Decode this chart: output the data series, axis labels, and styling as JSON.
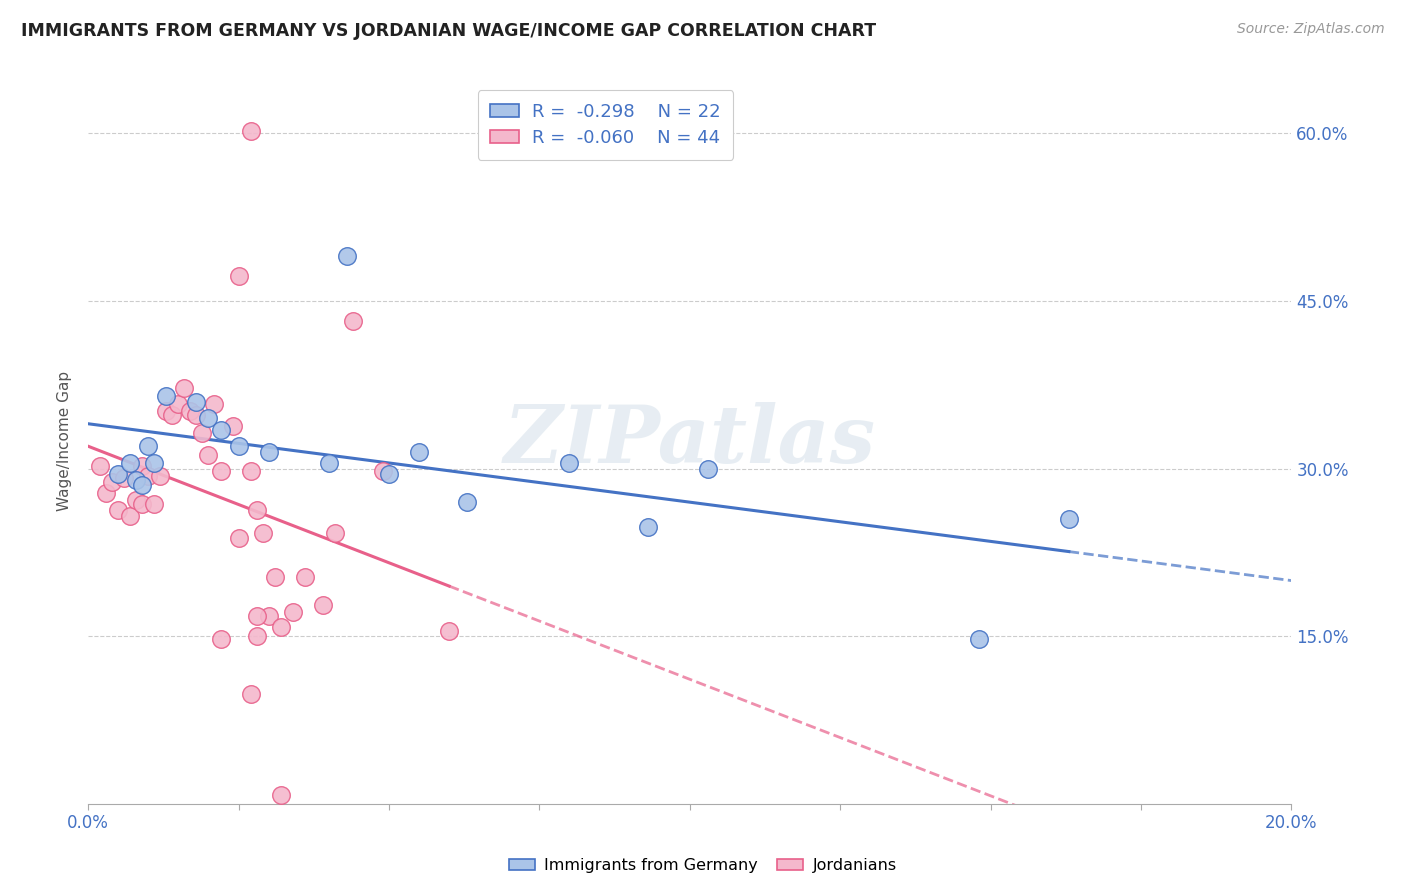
{
  "title": "IMMIGRANTS FROM GERMANY VS JORDANIAN WAGE/INCOME GAP CORRELATION CHART",
  "source": "Source: ZipAtlas.com",
  "ylabel": "Wage/Income Gap",
  "xmin": 0.0,
  "xmax": 0.2,
  "ymin": 0.0,
  "ymax": 0.65,
  "yticks": [
    0.15,
    0.3,
    0.45,
    0.6
  ],
  "ytick_labels": [
    "15.0%",
    "30.0%",
    "45.0%",
    "60.0%"
  ],
  "xtick_positions": [
    0.0,
    0.025,
    0.05,
    0.075,
    0.1,
    0.125,
    0.15,
    0.175,
    0.2
  ],
  "grid_color": "#cccccc",
  "background_color": "#ffffff",
  "watermark": "ZIPatlas",
  "legend_R_blue": "-0.298",
  "legend_N_blue": "22",
  "legend_R_pink": "-0.060",
  "legend_N_pink": "44",
  "blue_line_color": "#4472c4",
  "pink_line_color": "#e8608a",
  "blue_dot_face": "#aac4e8",
  "blue_dot_edge": "#4472c4",
  "pink_dot_face": "#f4b8cc",
  "pink_dot_edge": "#e8608a",
  "blue_points_x": [
    0.005,
    0.007,
    0.008,
    0.009,
    0.01,
    0.011,
    0.013,
    0.018,
    0.02,
    0.022,
    0.025,
    0.03,
    0.04,
    0.043,
    0.05,
    0.055,
    0.063,
    0.08,
    0.093,
    0.103,
    0.148,
    0.163
  ],
  "blue_points_y": [
    0.295,
    0.305,
    0.29,
    0.285,
    0.32,
    0.305,
    0.365,
    0.36,
    0.345,
    0.335,
    0.32,
    0.315,
    0.305,
    0.49,
    0.295,
    0.315,
    0.27,
    0.305,
    0.248,
    0.3,
    0.148,
    0.255
  ],
  "pink_points_x": [
    0.002,
    0.003,
    0.004,
    0.005,
    0.006,
    0.007,
    0.008,
    0.009,
    0.009,
    0.01,
    0.011,
    0.012,
    0.013,
    0.014,
    0.015,
    0.016,
    0.017,
    0.018,
    0.019,
    0.02,
    0.021,
    0.022,
    0.024,
    0.025,
    0.027,
    0.028,
    0.029,
    0.031,
    0.034,
    0.036,
    0.039,
    0.041,
    0.044,
    0.049,
    0.03,
    0.028,
    0.032,
    0.027,
    0.06,
    0.025,
    0.022,
    0.027,
    0.032,
    0.028
  ],
  "pink_points_y": [
    0.302,
    0.278,
    0.288,
    0.263,
    0.292,
    0.258,
    0.272,
    0.302,
    0.268,
    0.293,
    0.268,
    0.293,
    0.352,
    0.348,
    0.358,
    0.372,
    0.352,
    0.348,
    0.332,
    0.312,
    0.358,
    0.298,
    0.338,
    0.238,
    0.298,
    0.263,
    0.242,
    0.203,
    0.172,
    0.203,
    0.178,
    0.242,
    0.432,
    0.298,
    0.168,
    0.168,
    0.158,
    0.602,
    0.155,
    0.472,
    0.148,
    0.098,
    0.008,
    0.15
  ]
}
